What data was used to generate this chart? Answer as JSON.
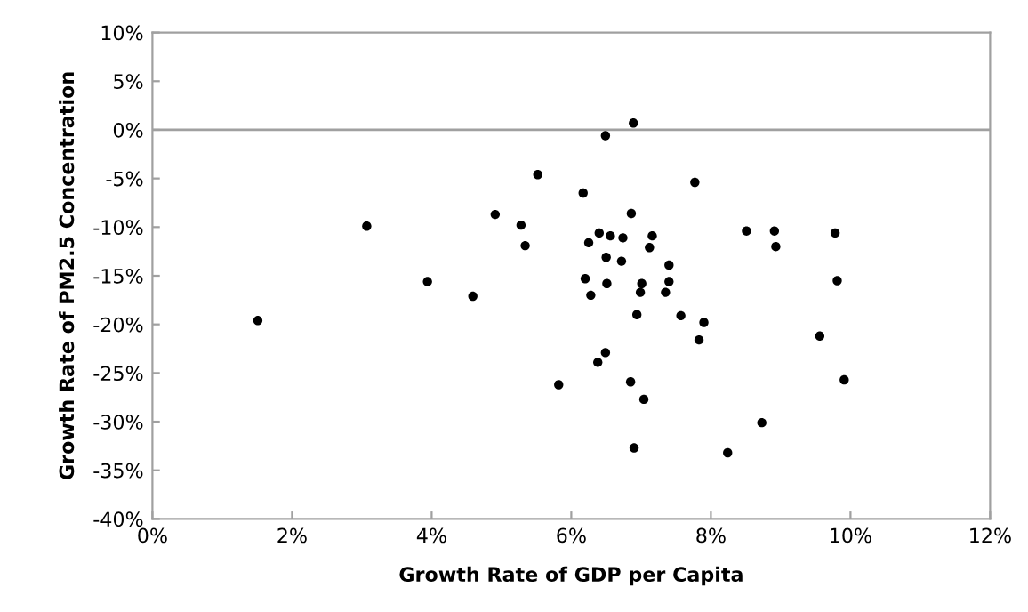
{
  "chart_data": {
    "type": "scatter",
    "xlabel": "Growth Rate of GDP per Capita",
    "ylabel": "Growth Rate of PM2.5 Concentration",
    "x": [
      1.51,
      3.07,
      3.94,
      4.59,
      4.91,
      5.28,
      5.34,
      5.52,
      5.82,
      6.17,
      6.2,
      6.49,
      6.89,
      7.77,
      6.86,
      6.4,
      6.56,
      6.74,
      7.16,
      6.25,
      7.12,
      6.5,
      6.72,
      7.4,
      6.51,
      7.01,
      7.4,
      6.28,
      6.99,
      7.35,
      6.94,
      7.57,
      7.9,
      7.83,
      6.49,
      6.38,
      6.85,
      7.04,
      6.9,
      8.24,
      8.73,
      8.51,
      8.91,
      8.93,
      9.78,
      9.81,
      9.56,
      9.91
    ],
    "values": [
      -19.6,
      -9.9,
      -15.6,
      -17.1,
      -8.7,
      -9.8,
      -11.9,
      -4.6,
      -26.2,
      -6.5,
      -15.3,
      -0.6,
      0.7,
      -5.4,
      -8.6,
      -10.6,
      -10.9,
      -11.1,
      -10.9,
      -11.6,
      -12.1,
      -13.1,
      -13.5,
      -13.9,
      -15.8,
      -15.8,
      -15.6,
      -17.0,
      -16.7,
      -16.7,
      -19.0,
      -19.1,
      -19.8,
      -21.6,
      -22.9,
      -23.9,
      -25.9,
      -27.7,
      -32.7,
      -33.2,
      -30.1,
      -10.4,
      -10.4,
      -12.0,
      -10.6,
      -15.5,
      -21.2,
      -25.7
    ],
    "color": "#000000",
    "marker": "circle",
    "xlim": [
      0,
      12
    ],
    "xticks": [
      {
        "value": 0,
        "label": "0%"
      },
      {
        "value": 2,
        "label": "2%"
      },
      {
        "value": 4,
        "label": "4%"
      },
      {
        "value": 6,
        "label": "6%"
      },
      {
        "value": 8,
        "label": "8%"
      },
      {
        "value": 10,
        "label": "10%"
      },
      {
        "value": 12,
        "label": "12%"
      }
    ],
    "ylim": [
      -40,
      10
    ],
    "yticks": [
      {
        "value": -40,
        "label": "-40%"
      },
      {
        "value": -35,
        "label": "-35%"
      },
      {
        "value": -30,
        "label": "-30%"
      },
      {
        "value": -25,
        "label": "-25%"
      },
      {
        "value": -20,
        "label": "-20%"
      },
      {
        "value": -15,
        "label": "-15%"
      },
      {
        "value": -10,
        "label": "-10%"
      },
      {
        "value": -5,
        "label": "-5%"
      },
      {
        "value": 0,
        "label": "0%"
      },
      {
        "value": 5,
        "label": "5%"
      },
      {
        "value": 10,
        "label": "10%"
      }
    ],
    "ref_lines": [
      {
        "axis": "y",
        "value": 0,
        "color": "#a0a0a0"
      }
    ],
    "grid": false,
    "legend": false
  }
}
